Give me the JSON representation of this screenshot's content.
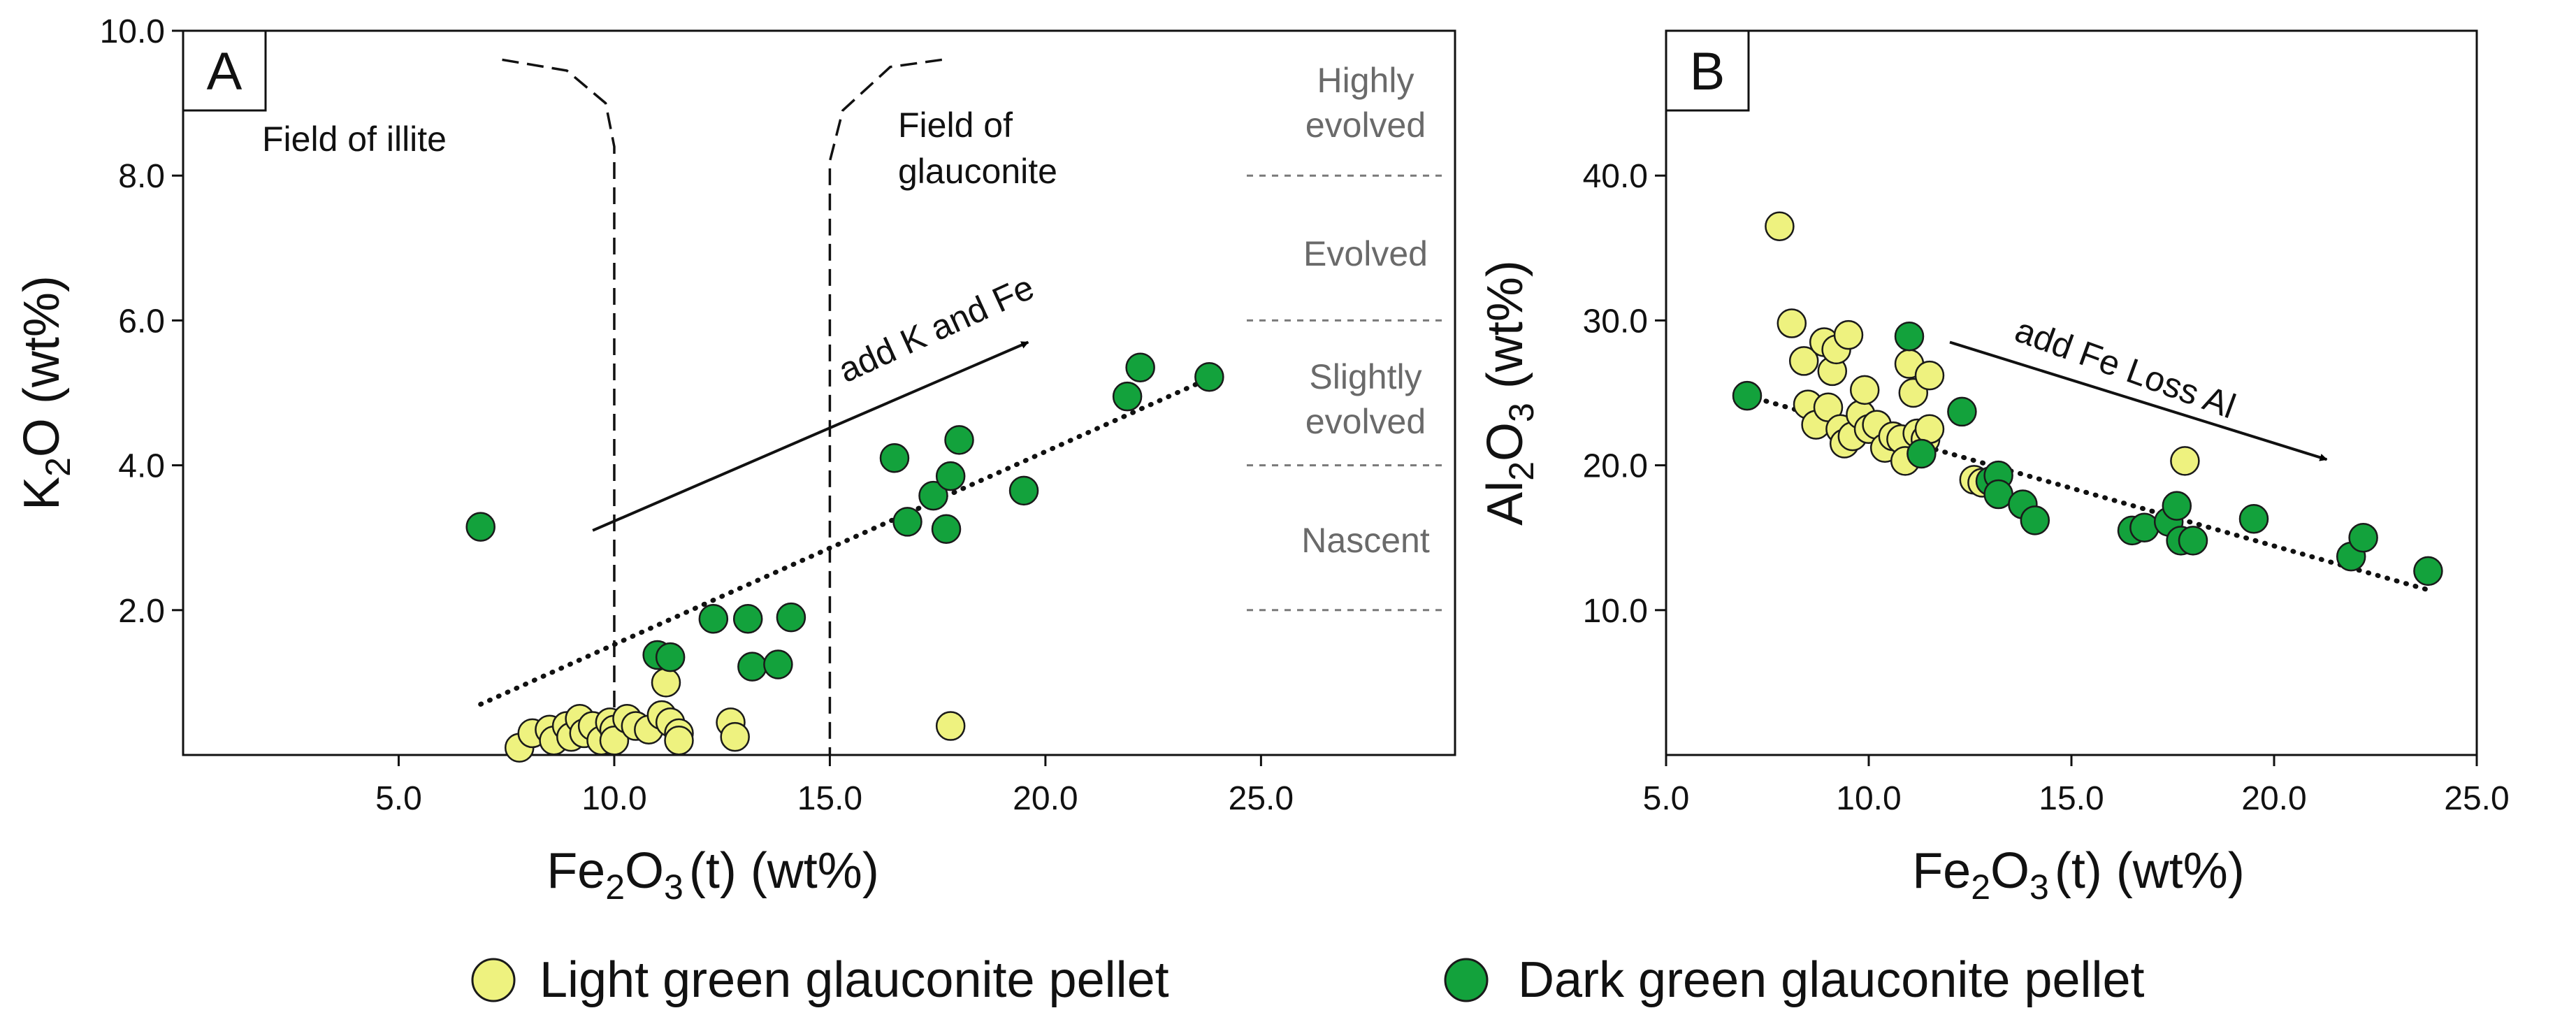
{
  "colors": {
    "light_green": "#eef27f",
    "dark_green": "#13a23c",
    "outline": "#1a1a1a",
    "stage_text": "#6a6a6a"
  },
  "legend": {
    "light_label": "Light green glauconite pellet",
    "dark_label": "Dark green glauconite pellet"
  },
  "chart_data": [
    {
      "type": "scatter",
      "panel": "A",
      "xlabel": {
        "main": "Fe",
        "sub1": "2",
        "mid": "O",
        "sub2": "3",
        "tail": "(t) (wt%)"
      },
      "ylabel": {
        "main": "K",
        "sub1": "2",
        "tail": "O (wt%)"
      },
      "xlim": [
        0,
        29.5
      ],
      "ylim": [
        0,
        10
      ],
      "xticks": [
        5,
        10,
        15,
        20,
        25
      ],
      "xtick_labels": [
        "5.0",
        "10.0",
        "15.0",
        "20.0",
        "25.0"
      ],
      "yticks": [
        2,
        4,
        6,
        8,
        10
      ],
      "ytick_labels": [
        "2.0",
        "4.0",
        "6.0",
        "8.0",
        "10.0"
      ],
      "fields": {
        "illite": "Field of illite",
        "glauconite_1": "Field of",
        "glauconite_2": "glauconite"
      },
      "stages": [
        {
          "lines": [
            "Highly",
            "evolved"
          ]
        },
        {
          "lines": [
            "Evolved"
          ]
        },
        {
          "lines": [
            "Slightly",
            "evolved"
          ]
        },
        {
          "lines": [
            "Nascent"
          ]
        }
      ],
      "stage_dividers": [
        8,
        6,
        4,
        2
      ],
      "arrow_label": "add K and Fe",
      "arrow": {
        "from": [
          9.5,
          3.1
        ],
        "to": [
          19.6,
          5.7
        ]
      },
      "trend": {
        "from": [
          6.9,
          0.7
        ],
        "to": [
          23.8,
          5.2
        ]
      },
      "boundary_illite": [
        [
          7.4,
          9.6
        ],
        [
          8.9,
          9.45
        ],
        [
          9.8,
          9.0
        ],
        [
          10.0,
          8.4
        ],
        [
          10.0,
          0.0
        ]
      ],
      "boundary_glauconite": [
        [
          17.6,
          9.6
        ],
        [
          16.4,
          9.5
        ],
        [
          15.3,
          8.9
        ],
        [
          15.0,
          8.2
        ],
        [
          15.0,
          0.0
        ]
      ],
      "series": [
        {
          "name": "Light green glauconite pellet",
          "points": [
            [
              7.8,
              0.1
            ],
            [
              8.1,
              0.3
            ],
            [
              8.5,
              0.35
            ],
            [
              8.6,
              0.2
            ],
            [
              8.9,
              0.4
            ],
            [
              9.0,
              0.25
            ],
            [
              9.2,
              0.5
            ],
            [
              9.3,
              0.3
            ],
            [
              9.5,
              0.4
            ],
            [
              9.7,
              0.2
            ],
            [
              9.9,
              0.45
            ],
            [
              10.0,
              0.35
            ],
            [
              10.0,
              0.2
            ],
            [
              10.3,
              0.5
            ],
            [
              10.5,
              0.4
            ],
            [
              10.8,
              0.35
            ],
            [
              11.1,
              0.55
            ],
            [
              11.3,
              0.45
            ],
            [
              11.5,
              0.3
            ],
            [
              11.5,
              0.2
            ],
            [
              11.2,
              1.0
            ],
            [
              12.7,
              0.45
            ],
            [
              12.8,
              0.25
            ],
            [
              17.8,
              0.4
            ]
          ]
        },
        {
          "name": "Dark green glauconite pellet",
          "points": [
            [
              6.9,
              3.15
            ],
            [
              11.0,
              1.38
            ],
            [
              11.3,
              1.35
            ],
            [
              12.3,
              1.88
            ],
            [
              13.1,
              1.88
            ],
            [
              13.2,
              1.22
            ],
            [
              13.8,
              1.25
            ],
            [
              14.1,
              1.9
            ],
            [
              16.5,
              4.1
            ],
            [
              16.8,
              3.22
            ],
            [
              17.4,
              3.58
            ],
            [
              17.7,
              3.12
            ],
            [
              17.8,
              3.85
            ],
            [
              18.0,
              4.35
            ],
            [
              19.5,
              3.65
            ],
            [
              21.9,
              4.95
            ],
            [
              22.2,
              5.35
            ],
            [
              23.8,
              5.22
            ]
          ]
        }
      ]
    },
    {
      "type": "scatter",
      "panel": "B",
      "xlabel": {
        "main": "Fe",
        "sub1": "2",
        "mid": "O",
        "sub2": "3",
        "tail": "(t) (wt%)"
      },
      "ylabel": {
        "main": "Al",
        "sub1": "2",
        "mid": "O",
        "sub2": "3",
        "tail": " (wt%)"
      },
      "xlim": [
        5,
        25
      ],
      "ylim": [
        0,
        50
      ],
      "xticks": [
        5,
        10,
        15,
        20,
        25
      ],
      "xtick_labels": [
        "5.0",
        "10.0",
        "15.0",
        "20.0",
        "25.0"
      ],
      "yticks": [
        10,
        20,
        30,
        40
      ],
      "ytick_labels": [
        "10.0",
        "20.0",
        "30.0",
        "40.0"
      ],
      "arrow_label": "add Fe Loss Al",
      "arrow": {
        "from": [
          12.0,
          28.5
        ],
        "to": [
          21.3,
          20.4
        ]
      },
      "trend": {
        "from": [
          7.0,
          24.8
        ],
        "to": [
          23.8,
          11.4
        ]
      },
      "series": [
        {
          "name": "Light green glauconite pellet",
          "points": [
            [
              7.8,
              36.5
            ],
            [
              8.1,
              29.8
            ],
            [
              8.4,
              27.2
            ],
            [
              8.5,
              24.2
            ],
            [
              8.7,
              22.8
            ],
            [
              8.9,
              28.5
            ],
            [
              9.0,
              24.0
            ],
            [
              9.1,
              26.5
            ],
            [
              9.2,
              28.0
            ],
            [
              9.3,
              22.5
            ],
            [
              9.4,
              21.5
            ],
            [
              9.5,
              29.0
            ],
            [
              9.6,
              22.0
            ],
            [
              9.8,
              23.5
            ],
            [
              9.9,
              25.2
            ],
            [
              10.0,
              22.5
            ],
            [
              10.2,
              22.8
            ],
            [
              10.4,
              21.2
            ],
            [
              10.6,
              22.0
            ],
            [
              10.8,
              21.8
            ],
            [
              10.9,
              20.3
            ],
            [
              11.0,
              27.0
            ],
            [
              11.1,
              25.0
            ],
            [
              11.2,
              22.2
            ],
            [
              11.4,
              21.8
            ],
            [
              11.5,
              22.5
            ],
            [
              11.5,
              26.2
            ],
            [
              12.6,
              19.0
            ],
            [
              12.8,
              18.8
            ],
            [
              17.8,
              20.3
            ]
          ]
        },
        {
          "name": "Dark green glauconite pellet",
          "points": [
            [
              7.0,
              24.8
            ],
            [
              11.0,
              28.9
            ],
            [
              11.3,
              20.8
            ],
            [
              12.3,
              23.7
            ],
            [
              13.0,
              18.9
            ],
            [
              13.2,
              19.3
            ],
            [
              13.2,
              18.0
            ],
            [
              13.8,
              17.3
            ],
            [
              14.1,
              16.2
            ],
            [
              16.5,
              15.5
            ],
            [
              16.8,
              15.7
            ],
            [
              17.4,
              16.1
            ],
            [
              17.6,
              17.2
            ],
            [
              17.7,
              14.8
            ],
            [
              18.0,
              14.8
            ],
            [
              19.5,
              16.3
            ],
            [
              21.9,
              13.7
            ],
            [
              22.2,
              15.0
            ],
            [
              23.8,
              12.7
            ]
          ]
        }
      ]
    }
  ]
}
